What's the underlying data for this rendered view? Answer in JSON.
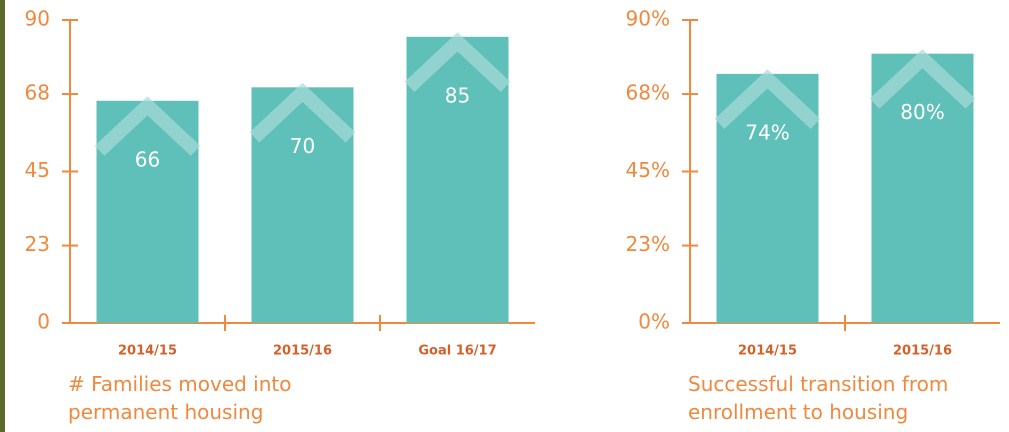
{
  "chart_data": [
    {
      "type": "bar",
      "caption": "# Families moved into permanent housing",
      "categories": [
        "2014/15",
        "2015/16",
        "Goal 16/17"
      ],
      "values": [
        66,
        70,
        85
      ],
      "color": "#5fbfb9",
      "ylim": [
        0,
        90
      ],
      "yticks": [
        0,
        23,
        45,
        68,
        90
      ],
      "grid": false
    },
    {
      "type": "bar",
      "caption": "Successful transition from enrollment to housing",
      "categories": [
        "2014/15",
        "2015/16"
      ],
      "values": [
        74,
        80
      ],
      "value_labels": [
        "74%",
        "80%"
      ],
      "color": "#5fbfb9",
      "ylim": [
        0,
        90
      ],
      "yticks": [
        {
          "value": 0,
          "label": "0%"
        },
        {
          "value": 23,
          "label": "23%"
        },
        {
          "value": 45,
          "label": "45%"
        },
        {
          "value": 68,
          "label": "68%"
        },
        {
          "value": 90,
          "label": "90%"
        }
      ],
      "grid": false
    }
  ]
}
